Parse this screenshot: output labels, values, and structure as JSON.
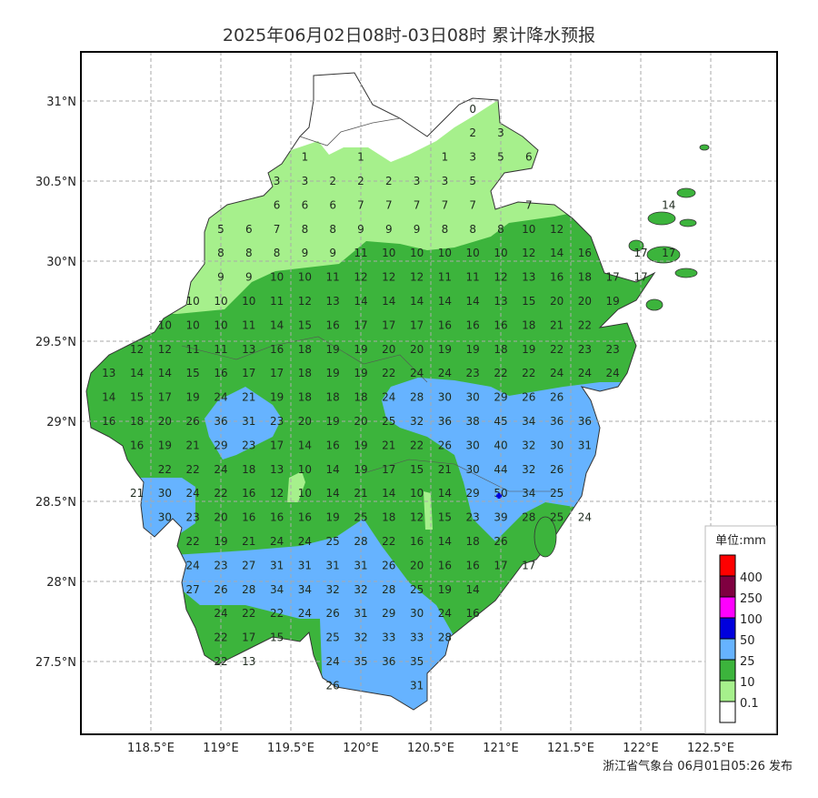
{
  "title": "2025年06月02日08时-03日08时 累计降水预报",
  "footer": "浙江省气象台 06月01日05:26 发布",
  "axes": {
    "x_ticks": [
      "118.5°E",
      "119°E",
      "119.5°E",
      "120°E",
      "120.5°E",
      "121°E",
      "121.5°E",
      "122°E",
      "122.5°E"
    ],
    "x_tick_values": [
      118.5,
      119,
      119.5,
      120,
      120.5,
      121,
      121.5,
      122,
      122.5
    ],
    "y_ticks": [
      "31°N",
      "30.5°N",
      "30°N",
      "29.5°N",
      "29°N",
      "28.5°N",
      "28°N",
      "27.5°N"
    ],
    "y_tick_values": [
      31,
      30.5,
      30,
      29.5,
      29,
      28.5,
      28,
      27.5
    ],
    "grid": true
  },
  "legend": {
    "title": "单位:mm",
    "levels": [
      {
        "label": "400",
        "color": "#ff0000"
      },
      {
        "label": "250",
        "color": "#7f0040"
      },
      {
        "label": "100",
        "color": "#ff00ff"
      },
      {
        "label": "50",
        "color": "#0000dd"
      },
      {
        "label": "25",
        "color": "#66b3ff"
      },
      {
        "label": "10",
        "color": "#3cb43c"
      },
      {
        "label": "0.1",
        "color": "#a6f08c"
      },
      {
        "label": "",
        "color": "#ffffff"
      }
    ]
  },
  "colors": {
    "lt25": "#66b3ff",
    "lt10": "#3cb43c",
    "lt01": "#a6f08c",
    "peak": "#0000dd"
  },
  "grid_values": {
    "lon_start": 118.2,
    "lon_step": 0.2,
    "lat_start": 30.95,
    "lat_step": -0.15,
    "rows": [
      [
        null,
        null,
        null,
        null,
        null,
        null,
        null,
        null,
        null,
        null,
        null,
        null,
        null,
        0,
        null,
        null,
        null,
        null,
        null,
        null,
        null
      ],
      [
        null,
        null,
        null,
        null,
        null,
        null,
        null,
        null,
        null,
        null,
        null,
        null,
        null,
        2,
        3,
        null,
        null,
        null,
        null,
        null,
        null
      ],
      [
        null,
        null,
        null,
        null,
        null,
        null,
        null,
        1,
        null,
        1,
        null,
        null,
        1,
        3,
        5,
        6,
        null,
        null,
        null,
        null,
        null
      ],
      [
        null,
        null,
        null,
        null,
        null,
        null,
        3,
        3,
        2,
        2,
        2,
        3,
        3,
        5,
        null,
        null,
        null,
        null,
        null,
        null,
        null
      ],
      [
        null,
        null,
        null,
        null,
        null,
        null,
        6,
        6,
        6,
        7,
        7,
        7,
        7,
        7,
        null,
        7,
        null,
        null,
        null,
        null,
        14
      ],
      [
        null,
        null,
        null,
        null,
        5,
        6,
        7,
        8,
        8,
        9,
        9,
        9,
        8,
        8,
        8,
        10,
        12,
        null,
        null,
        null,
        null
      ],
      [
        null,
        null,
        null,
        null,
        8,
        8,
        8,
        9,
        9,
        11,
        10,
        10,
        10,
        10,
        10,
        12,
        14,
        16,
        null,
        17,
        17
      ],
      [
        null,
        null,
        null,
        null,
        9,
        9,
        10,
        10,
        11,
        12,
        12,
        12,
        11,
        11,
        12,
        13,
        16,
        18,
        17,
        17,
        null
      ],
      [
        null,
        null,
        null,
        10,
        10,
        10,
        11,
        12,
        13,
        14,
        14,
        14,
        14,
        14,
        13,
        15,
        20,
        20,
        19,
        null,
        null
      ],
      [
        null,
        null,
        10,
        10,
        10,
        11,
        14,
        15,
        16,
        17,
        17,
        17,
        16,
        16,
        16,
        18,
        21,
        22,
        null,
        null,
        null
      ],
      [
        null,
        12,
        12,
        11,
        11,
        13,
        16,
        18,
        19,
        19,
        20,
        20,
        19,
        19,
        18,
        19,
        22,
        23,
        23,
        null,
        null
      ],
      [
        13,
        14,
        14,
        15,
        16,
        17,
        17,
        18,
        19,
        19,
        22,
        24,
        24,
        23,
        22,
        22,
        24,
        24,
        24,
        null,
        null
      ],
      [
        14,
        15,
        17,
        19,
        24,
        21,
        19,
        18,
        18,
        18,
        24,
        28,
        30,
        30,
        29,
        26,
        26,
        null,
        null,
        null,
        null
      ],
      [
        16,
        18,
        20,
        26,
        36,
        31,
        23,
        20,
        19,
        20,
        25,
        32,
        36,
        38,
        45,
        34,
        36,
        36,
        null,
        null,
        null
      ],
      [
        null,
        16,
        19,
        21,
        29,
        23,
        17,
        14,
        16,
        19,
        21,
        22,
        26,
        30,
        40,
        32,
        30,
        31,
        null,
        null,
        null
      ],
      [
        null,
        null,
        22,
        22,
        24,
        18,
        13,
        10,
        14,
        19,
        17,
        15,
        21,
        30,
        44,
        32,
        26,
        null,
        null,
        null,
        null
      ],
      [
        null,
        21,
        30,
        24,
        22,
        16,
        12,
        10,
        14,
        21,
        14,
        10,
        14,
        29,
        50,
        34,
        25,
        null,
        null,
        null,
        null
      ],
      [
        null,
        null,
        30,
        23,
        20,
        16,
        16,
        16,
        19,
        25,
        18,
        12,
        15,
        23,
        39,
        28,
        25,
        24,
        null,
        null,
        null
      ],
      [
        null,
        null,
        null,
        22,
        19,
        21,
        24,
        24,
        25,
        28,
        22,
        16,
        14,
        18,
        26,
        null,
        null,
        null,
        null,
        null,
        null
      ],
      [
        null,
        null,
        null,
        24,
        23,
        27,
        31,
        31,
        31,
        31,
        26,
        20,
        16,
        16,
        17,
        17,
        null,
        null,
        null,
        null,
        null
      ],
      [
        null,
        null,
        null,
        27,
        26,
        28,
        34,
        34,
        32,
        32,
        28,
        25,
        19,
        14,
        null,
        null,
        null,
        null,
        null,
        null,
        null
      ],
      [
        null,
        null,
        null,
        null,
        24,
        22,
        22,
        24,
        26,
        31,
        29,
        30,
        24,
        16,
        null,
        null,
        null,
        null,
        null,
        null,
        null
      ],
      [
        null,
        null,
        null,
        null,
        22,
        17,
        15,
        null,
        25,
        32,
        33,
        33,
        28,
        null,
        null,
        null,
        null,
        null,
        null,
        null,
        null
      ],
      [
        null,
        null,
        null,
        null,
        22,
        13,
        null,
        null,
        24,
        35,
        36,
        35,
        null,
        null,
        null,
        null,
        null,
        null,
        null,
        null,
        null
      ],
      [
        null,
        null,
        null,
        null,
        null,
        null,
        null,
        null,
        26,
        null,
        null,
        31,
        null,
        null,
        null,
        null,
        null,
        null,
        null,
        null,
        null
      ]
    ]
  }
}
